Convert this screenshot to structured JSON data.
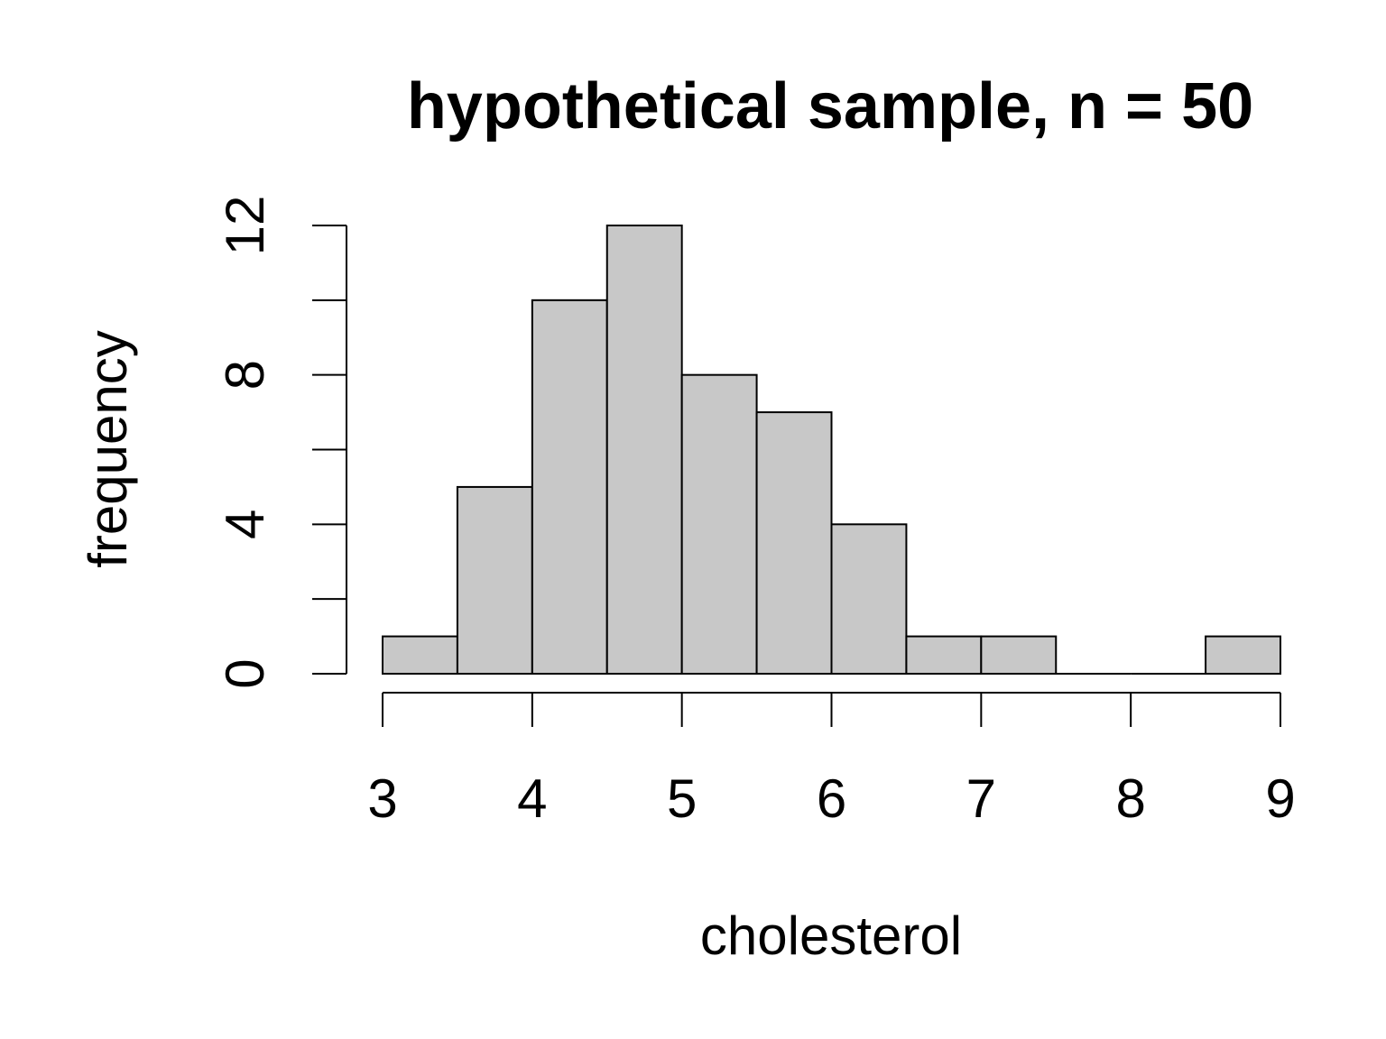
{
  "chart_data": {
    "type": "bar",
    "title": "hypothetical sample, n = 50",
    "xlabel": "cholesterol",
    "ylabel": "frequency",
    "bins": [
      {
        "start": 3.0,
        "end": 3.5,
        "count": 1
      },
      {
        "start": 3.5,
        "end": 4.0,
        "count": 5
      },
      {
        "start": 4.0,
        "end": 4.5,
        "count": 10
      },
      {
        "start": 4.5,
        "end": 5.0,
        "count": 12
      },
      {
        "start": 5.0,
        "end": 5.5,
        "count": 8
      },
      {
        "start": 5.5,
        "end": 6.0,
        "count": 7
      },
      {
        "start": 6.0,
        "end": 6.5,
        "count": 4
      },
      {
        "start": 6.5,
        "end": 7.0,
        "count": 1
      },
      {
        "start": 7.0,
        "end": 7.5,
        "count": 1
      },
      {
        "start": 7.5,
        "end": 8.0,
        "count": 0
      },
      {
        "start": 8.0,
        "end": 8.5,
        "count": 0
      },
      {
        "start": 8.5,
        "end": 9.0,
        "count": 1
      }
    ],
    "xlim": [
      3,
      9
    ],
    "ylim": [
      0,
      12
    ],
    "x_ticks": [
      "3",
      "4",
      "5",
      "6",
      "7",
      "8",
      "9"
    ],
    "y_ticks": [
      0,
      2,
      4,
      6,
      8,
      10,
      12
    ],
    "y_tick_labels": [
      "0",
      "4",
      "8",
      "12"
    ],
    "bar_color": "#c8c8c8",
    "grid": false,
    "legend": "none"
  }
}
